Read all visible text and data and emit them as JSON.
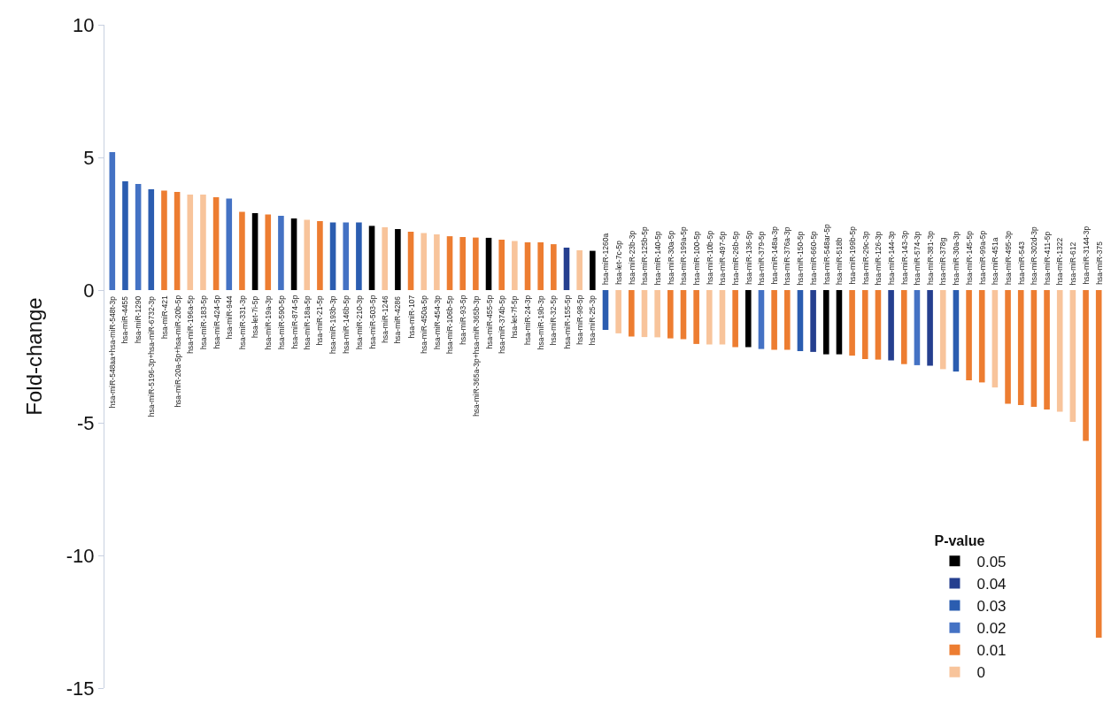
{
  "chart_data": {
    "type": "bar",
    "ylabel": "Fold-change",
    "legend_title": "P-value",
    "legend": "bottom right",
    "ylim": [
      -15,
      10
    ],
    "yticks": [
      10,
      5,
      0,
      -5,
      -10,
      -15
    ],
    "categories": [
      "hsa-miR-548aa+hsa-miR-548t-3p",
      "hsa-miR-4455",
      "hsa-miR-1290",
      "hsa-miR-5196-3p+hsa-miR-6732-3p",
      "hsa-miR-421",
      "hsa-miR-20a-5p+hsa-miR-20b-5p",
      "hsa-miR-196a-5p",
      "hsa-miR-183-5p",
      "hsa-miR-424-5p",
      "hsa-miR-944",
      "hsa-miR-331-3p",
      "hsa-let-7i-5p",
      "hsa-miR-19a-3p",
      "hsa-miR-590-5p",
      "hsa-miR-874-5p",
      "hsa-miR-18a-5p",
      "hsa-miR-21-5p",
      "hsa-miR-193b-3p",
      "hsa-miR-146b-5p",
      "hsa-miR-210-3p",
      "hsa-miR-503-5p",
      "hsa-miR-1246",
      "hsa-miR-4286",
      "hsa-miR-107",
      "hsa-miR-450a-5p",
      "hsa-miR-454-3p",
      "hsa-miR-106b-5p",
      "hsa-miR-93-5p",
      "hsa-miR-365a-3p+hsa-miR-365b-3p",
      "hsa-miR-455-5p",
      "hsa-miR-374b-5p",
      "hsa-let-7f-5p",
      "hsa-miR-24-3p",
      "hsa-miR-19b-3p",
      "hsa-miR-32-5p",
      "hsa-miR-155-5p",
      "hsa-miR-98-5p",
      "hsa-miR-25-3p",
      "hsa-miR-1260a",
      "hsa-let-7c-5p",
      "hsa-miR-23b-3p",
      "hsa-miR-125b-5p",
      "hsa-miR-140-5p",
      "hsa-miR-30a-5p",
      "hsa-miR-199a-5p",
      "hsa-miR-100-5p",
      "hsa-miR-10b-5p",
      "hsa-miR-497-5p",
      "hsa-miR-26b-5p",
      "hsa-miR-136-5p",
      "hsa-miR-379-5p",
      "hsa-miR-148a-3p",
      "hsa-miR-376a-3p",
      "hsa-miR-150-5p",
      "hsa-miR-660-5p",
      "hsa-miR-548ar-5p",
      "hsa-miR-518b",
      "hsa-miR-199b-5p",
      "hsa-miR-29c-3p",
      "hsa-miR-126-3p",
      "hsa-miR-144-3p",
      "hsa-miR-143-3p",
      "hsa-miR-574-3p",
      "hsa-miR-381-3p",
      "hsa-miR-378g",
      "hsa-miR-30a-3p",
      "hsa-miR-145-5p",
      "hsa-miR-99a-5p",
      "hsa-miR-451a",
      "hsa-miR-495-3p",
      "hsa-miR-543",
      "hsa-miR-302d-3p",
      "hsa-miR-411-5p",
      "hsa-miR-1322",
      "hsa-miR-612",
      "hsa-miR-3144-3p",
      "hsa-miR-375"
    ],
    "series": [
      {
        "name": "0.05",
        "color": "#000000",
        "values": [
          null,
          null,
          null,
          null,
          null,
          null,
          null,
          null,
          null,
          null,
          null,
          2.9,
          null,
          null,
          2.7,
          null,
          null,
          null,
          null,
          null,
          2.42,
          null,
          2.3,
          null,
          null,
          null,
          null,
          null,
          null,
          1.97,
          null,
          null,
          null,
          null,
          null,
          null,
          null,
          1.48,
          null,
          null,
          null,
          null,
          null,
          null,
          null,
          null,
          null,
          null,
          null,
          -2.15,
          null,
          null,
          null,
          null,
          null,
          -2.42,
          -2.42,
          null,
          null,
          null,
          null,
          null,
          null,
          null,
          null,
          null,
          null,
          null,
          null,
          null,
          null,
          null,
          null,
          null,
          null,
          null,
          null
        ]
      },
      {
        "name": "0.04",
        "color": "#253f8f",
        "values": [
          null,
          null,
          null,
          null,
          null,
          null,
          null,
          null,
          null,
          null,
          null,
          null,
          null,
          null,
          null,
          null,
          null,
          null,
          null,
          null,
          null,
          null,
          null,
          null,
          null,
          null,
          null,
          null,
          null,
          null,
          null,
          null,
          null,
          null,
          null,
          1.6,
          null,
          null,
          null,
          null,
          null,
          null,
          null,
          null,
          null,
          null,
          null,
          null,
          null,
          null,
          null,
          null,
          null,
          null,
          -2.33,
          null,
          null,
          null,
          null,
          null,
          -2.65,
          null,
          null,
          -2.85,
          null,
          null,
          null,
          null,
          null,
          null,
          null,
          null,
          null,
          null,
          null,
          null,
          null
        ]
      },
      {
        "name": "0.03",
        "color": "#2b5db0",
        "values": [
          null,
          4.1,
          null,
          3.8,
          null,
          null,
          null,
          null,
          null,
          null,
          null,
          null,
          null,
          null,
          null,
          null,
          null,
          2.55,
          null,
          2.55,
          null,
          null,
          null,
          null,
          null,
          null,
          null,
          null,
          null,
          null,
          null,
          null,
          null,
          null,
          null,
          null,
          null,
          null,
          -1.5,
          null,
          null,
          null,
          null,
          null,
          null,
          null,
          null,
          null,
          null,
          null,
          null,
          null,
          null,
          -2.3,
          null,
          null,
          null,
          null,
          null,
          null,
          null,
          null,
          null,
          null,
          null,
          -3.07,
          null,
          null,
          null,
          null,
          null,
          null,
          null,
          null,
          null,
          null,
          null
        ]
      },
      {
        "name": "0.02",
        "color": "#4472c4",
        "values": [
          5.2,
          null,
          4.0,
          null,
          null,
          null,
          null,
          null,
          null,
          3.45,
          null,
          null,
          null,
          2.8,
          null,
          null,
          null,
          null,
          2.55,
          null,
          null,
          null,
          null,
          null,
          null,
          null,
          null,
          null,
          null,
          null,
          null,
          null,
          null,
          null,
          null,
          null,
          null,
          null,
          null,
          null,
          null,
          null,
          null,
          null,
          null,
          null,
          null,
          null,
          null,
          null,
          -2.22,
          null,
          null,
          null,
          null,
          null,
          null,
          null,
          null,
          null,
          null,
          null,
          -2.83,
          null,
          null,
          null,
          null,
          null,
          null,
          null,
          null,
          null,
          null,
          null,
          null,
          null,
          null
        ]
      },
      {
        "name": "0.01",
        "color": "#ed7d31",
        "values": [
          null,
          null,
          null,
          null,
          3.75,
          3.7,
          null,
          null,
          3.5,
          null,
          2.95,
          null,
          2.85,
          null,
          null,
          null,
          2.6,
          null,
          null,
          null,
          null,
          null,
          null,
          2.2,
          null,
          null,
          2.03,
          2.0,
          1.98,
          null,
          1.9,
          null,
          1.8,
          1.8,
          1.73,
          null,
          null,
          null,
          null,
          null,
          -1.75,
          null,
          null,
          -1.82,
          -1.85,
          -2.03,
          null,
          null,
          -2.15,
          null,
          null,
          -2.25,
          -2.25,
          null,
          null,
          null,
          null,
          -2.47,
          -2.6,
          -2.62,
          null,
          -2.79,
          null,
          null,
          null,
          null,
          -3.4,
          -3.48,
          null,
          -4.28,
          -4.33,
          -4.4,
          -4.5,
          null,
          null,
          -5.68,
          -13.1
        ]
      },
      {
        "name": "0",
        "color": "#f8c49b",
        "values": [
          null,
          null,
          null,
          null,
          null,
          null,
          3.6,
          3.6,
          null,
          null,
          null,
          null,
          null,
          null,
          null,
          2.65,
          null,
          null,
          null,
          null,
          null,
          2.37,
          null,
          null,
          2.15,
          2.1,
          null,
          null,
          null,
          null,
          null,
          1.85,
          null,
          null,
          null,
          null,
          1.5,
          null,
          null,
          -1.63,
          null,
          -1.77,
          -1.78,
          null,
          null,
          null,
          -2.05,
          -2.05,
          null,
          null,
          null,
          null,
          null,
          null,
          null,
          null,
          null,
          null,
          null,
          null,
          null,
          null,
          null,
          null,
          -2.98,
          null,
          null,
          null,
          -3.67,
          null,
          null,
          null,
          null,
          -4.58,
          -4.97,
          null,
          null
        ]
      }
    ]
  }
}
